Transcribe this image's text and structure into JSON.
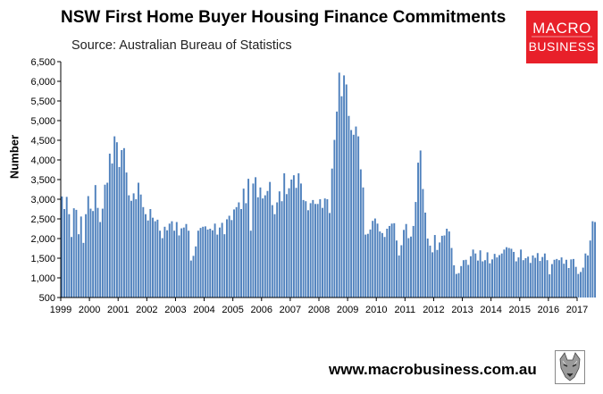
{
  "header": {
    "title": "NSW First Home Buyer Housing Finance Commitments",
    "subtitle": "Source: Australian Bureau of Statistics"
  },
  "logo": {
    "line1": "MACRO",
    "line2": "BUSINESS",
    "color": "#e8202a"
  },
  "footer": {
    "url": "www.macrobusiness.com.au"
  },
  "chart_data": {
    "type": "bar",
    "ylabel": "Number",
    "ylim": [
      500,
      6500
    ],
    "yticks": [
      500,
      1000,
      1500,
      2000,
      2500,
      3000,
      3500,
      4000,
      4500,
      5000,
      5500,
      6000,
      6500
    ],
    "ytick_labels": [
      "500",
      "1,000",
      "1,500",
      "2,000",
      "2,500",
      "3,000",
      "3,500",
      "4,000",
      "4,500",
      "5,000",
      "5,500",
      "6,000",
      "6,500"
    ],
    "xlim": [
      1999,
      2017
    ],
    "xticks": [
      1999,
      2000,
      2001,
      2002,
      2003,
      2004,
      2005,
      2006,
      2007,
      2008,
      2009,
      2010,
      2011,
      2012,
      2013,
      2014,
      2015,
      2016,
      2017
    ],
    "xtick_labels": [
      "1999",
      "2000",
      "2001",
      "2002",
      "2003",
      "2004",
      "2005",
      "2006",
      "2007",
      "2008",
      "2009",
      "2010",
      "2011",
      "2012",
      "2013",
      "2014",
      "2015",
      "2016",
      "2017"
    ],
    "bar_color": "#4f81bd",
    "grid": false,
    "series": [
      {
        "start": "1999-01",
        "frequency": "monthly",
        "values": [
          3070,
          2750,
          3060,
          2620,
          2040,
          2770,
          2730,
          2110,
          2560,
          1890,
          2620,
          3080,
          2760,
          2700,
          3360,
          2780,
          2420,
          2760,
          3370,
          3420,
          4160,
          3910,
          4600,
          4450,
          3820,
          4250,
          4300,
          3680,
          3100,
          2960,
          3150,
          3000,
          3420,
          3120,
          2800,
          2620,
          2460,
          2750,
          2530,
          2440,
          2480,
          2200,
          2010,
          2300,
          2210,
          2380,
          2440,
          2200,
          2420,
          2080,
          2260,
          2280,
          2370,
          2200,
          1440,
          1560,
          1800,
          2200,
          2270,
          2300,
          2310,
          2230,
          2250,
          2210,
          2380,
          2100,
          2280,
          2400,
          2110,
          2490,
          2580,
          2470,
          2740,
          2800,
          2920,
          2750,
          3270,
          2900,
          3520,
          2200,
          3400,
          3560,
          3050,
          3300,
          3020,
          3100,
          3210,
          3440,
          2850,
          2620,
          2920,
          3200,
          2950,
          3660,
          3130,
          3280,
          3500,
          3610,
          3290,
          3660,
          3400,
          2980,
          2950,
          2720,
          2900,
          2980,
          2880,
          2880,
          3000,
          2780,
          3020,
          3000,
          2650,
          3780,
          4510,
          5230,
          6220,
          5620,
          6150,
          5920,
          5120,
          4760,
          4640,
          4850,
          4600,
          3760,
          3300,
          2100,
          2120,
          2230,
          2450,
          2510,
          2380,
          2180,
          2140,
          2040,
          2250,
          2320,
          2380,
          2390,
          1950,
          1570,
          1830,
          2220,
          2370,
          2010,
          2050,
          2320,
          2930,
          3930,
          4240,
          3260,
          2660,
          2000,
          1820,
          1650,
          2090,
          1710,
          1900,
          2070,
          2080,
          2250,
          2180,
          1760,
          1320,
          1100,
          1120,
          1300,
          1450,
          1460,
          1330,
          1550,
          1720,
          1620,
          1440,
          1700,
          1420,
          1450,
          1650,
          1370,
          1470,
          1610,
          1520,
          1580,
          1620,
          1720,
          1780,
          1760,
          1740,
          1660,
          1420,
          1520,
          1720,
          1450,
          1500,
          1540,
          1380,
          1570,
          1510,
          1630,
          1430,
          1530,
          1620,
          1450,
          1090,
          1350,
          1460,
          1480,
          1450,
          1520,
          1360,
          1460,
          1250,
          1470,
          1480,
          1280,
          1100,
          1150,
          1260,
          1620,
          1570,
          1950,
          2440,
          2420
        ]
      }
    ]
  }
}
